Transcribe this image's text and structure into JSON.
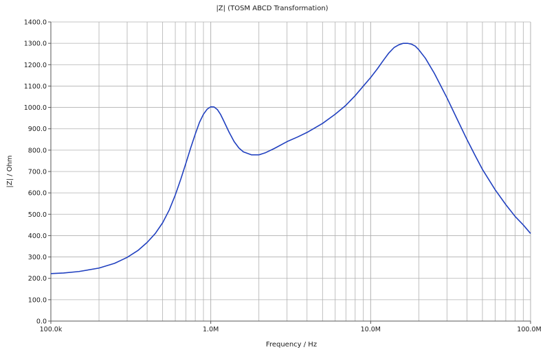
{
  "chart_data": {
    "type": "line",
    "title": "|Z| (TOSM ABCD Transformation)",
    "xlabel": "Frequency / Hz",
    "ylabel": "|Z| / Ohm",
    "x_scale": "log",
    "xlim": [
      100000,
      100000000
    ],
    "ylim": [
      0,
      1400
    ],
    "grid": true,
    "line_color": "#1f3fbf",
    "grid_color": "#b0b0b0",
    "x_ticks": [
      {
        "value": 100000,
        "label": "100.0k"
      },
      {
        "value": 1000000,
        "label": "1.0M"
      },
      {
        "value": 10000000,
        "label": "10.0M"
      },
      {
        "value": 100000000,
        "label": "100.0M"
      }
    ],
    "y_ticks": [
      {
        "value": 0,
        "label": "0.0"
      },
      {
        "value": 100,
        "label": "100.0"
      },
      {
        "value": 200,
        "label": "200.0"
      },
      {
        "value": 300,
        "label": "300.0"
      },
      {
        "value": 400,
        "label": "400.0"
      },
      {
        "value": 500,
        "label": "500.0"
      },
      {
        "value": 600,
        "label": "600.0"
      },
      {
        "value": 700,
        "label": "700.0"
      },
      {
        "value": 800,
        "label": "800.0"
      },
      {
        "value": 900,
        "label": "900.0"
      },
      {
        "value": 1000,
        "label": "1000.0"
      },
      {
        "value": 1100,
        "label": "1100.0"
      },
      {
        "value": 1200,
        "label": "1200.0"
      },
      {
        "value": 1300,
        "label": "1300.0"
      },
      {
        "value": 1400,
        "label": "1400.0"
      }
    ],
    "series": [
      {
        "x": [
          100000,
          120000,
          150000,
          200000,
          250000,
          300000,
          350000,
          400000,
          450000,
          500000,
          550000,
          600000,
          650000,
          700000,
          750000,
          800000,
          850000,
          900000,
          950000,
          1000000,
          1050000,
          1100000,
          1150000,
          1200000,
          1300000,
          1400000,
          1500000,
          1600000,
          1800000,
          2000000,
          2200000,
          2500000,
          3000000,
          3500000,
          4000000,
          5000000,
          6000000,
          7000000,
          8000000,
          9000000,
          10000000,
          11000000,
          12000000,
          13000000,
          14000000,
          15000000,
          16000000,
          17000000,
          18000000,
          19000000,
          20000000,
          22000000,
          25000000,
          30000000,
          35000000,
          40000000,
          45000000,
          50000000,
          60000000,
          70000000,
          80000000,
          90000000,
          100000000
        ],
        "y": [
          222,
          225,
          232,
          248,
          270,
          298,
          330,
          368,
          410,
          460,
          520,
          590,
          665,
          740,
          812,
          875,
          930,
          968,
          992,
          1003,
          1002,
          990,
          968,
          940,
          885,
          840,
          810,
          792,
          778,
          778,
          788,
          808,
          840,
          862,
          883,
          925,
          968,
          1010,
          1055,
          1100,
          1140,
          1180,
          1220,
          1255,
          1280,
          1293,
          1300,
          1300,
          1296,
          1287,
          1270,
          1230,
          1160,
          1045,
          940,
          850,
          775,
          710,
          615,
          545,
          490,
          450,
          410
        ]
      }
    ]
  }
}
